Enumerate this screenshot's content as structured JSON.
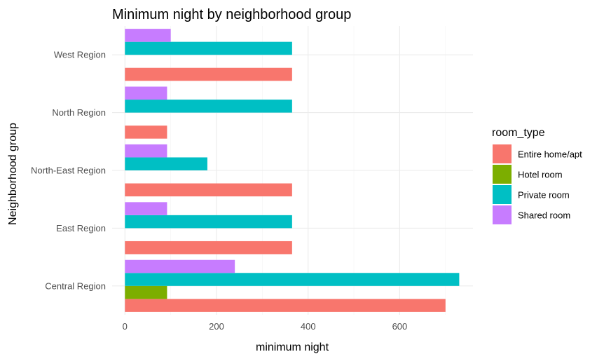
{
  "chart_data": {
    "type": "bar",
    "orientation": "horizontal",
    "title": "Minimum night by neighborhood group",
    "xlabel": "minimum night",
    "ylabel": "Neighborhood group",
    "xlim": [
      -28,
      760
    ],
    "xticks": [
      0,
      200,
      400,
      600
    ],
    "grid": true,
    "legend": {
      "title": "room_type",
      "position": "right"
    },
    "categories": [
      "Central Region",
      "East Region",
      "North-East Region",
      "North Region",
      "West Region"
    ],
    "series": [
      {
        "name": "Entire home/apt",
        "color": "#F8766D",
        "values": [
          700,
          365,
          365,
          92,
          365
        ]
      },
      {
        "name": "Hotel room",
        "color": "#7CAE00",
        "values": [
          92,
          null,
          null,
          null,
          null
        ]
      },
      {
        "name": "Private room",
        "color": "#00BFC4",
        "values": [
          730,
          365,
          180,
          365,
          365
        ]
      },
      {
        "name": "Shared room",
        "color": "#C77CFF",
        "values": [
          240,
          92,
          92,
          92,
          100
        ]
      }
    ]
  }
}
